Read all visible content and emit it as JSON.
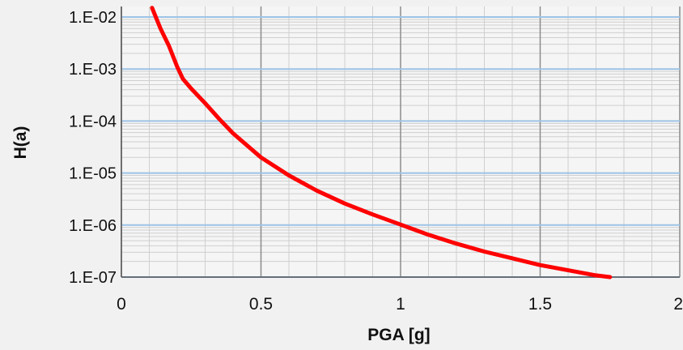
{
  "chart_data": {
    "type": "line",
    "title": "",
    "xlabel": "PGA [g]",
    "ylabel": "H(a)",
    "xlim": [
      0,
      2
    ],
    "ylim": [
      1e-07,
      0.01
    ],
    "y_scale": "log",
    "x_ticks": [
      0,
      0.5,
      1,
      1.5,
      2
    ],
    "x_tick_labels": [
      "0",
      "0.5",
      "1",
      "1.5",
      "2"
    ],
    "y_ticks": [
      1e-07,
      1e-06,
      1e-05,
      0.0001,
      0.001,
      0.01
    ],
    "y_tick_labels": [
      "1.E-07",
      "1.E-06",
      "1.E-05",
      "1.E-04",
      "1.E-03",
      "1.E-02"
    ],
    "grid": true,
    "legend": "none",
    "colors": {
      "background": "#f1f1f1",
      "plot_background": "#f5f5f5",
      "major_grid_x": "#8c8c8c",
      "major_grid_y": "#9dc3e6",
      "minor_grid": "#cfcfcf",
      "series": "#ff0000"
    },
    "series": [
      {
        "x": [
          0.11,
          0.14,
          0.17,
          0.2,
          0.22,
          0.25,
          0.3,
          0.35,
          0.4,
          0.5,
          0.6,
          0.7,
          0.8,
          0.9,
          1.0,
          1.1,
          1.2,
          1.3,
          1.4,
          1.5,
          1.6,
          1.7,
          1.75
        ],
        "y": [
          0.015,
          0.006,
          0.0028,
          0.0011,
          0.00065,
          0.00042,
          0.00022,
          0.00011,
          5.8e-05,
          2e-05,
          9e-06,
          4.6e-06,
          2.6e-06,
          1.6e-06,
          1.02e-06,
          6.5e-07,
          4.4e-07,
          3.1e-07,
          2.3e-07,
          1.7e-07,
          1.35e-07,
          1.08e-07,
          1e-07
        ]
      }
    ]
  }
}
